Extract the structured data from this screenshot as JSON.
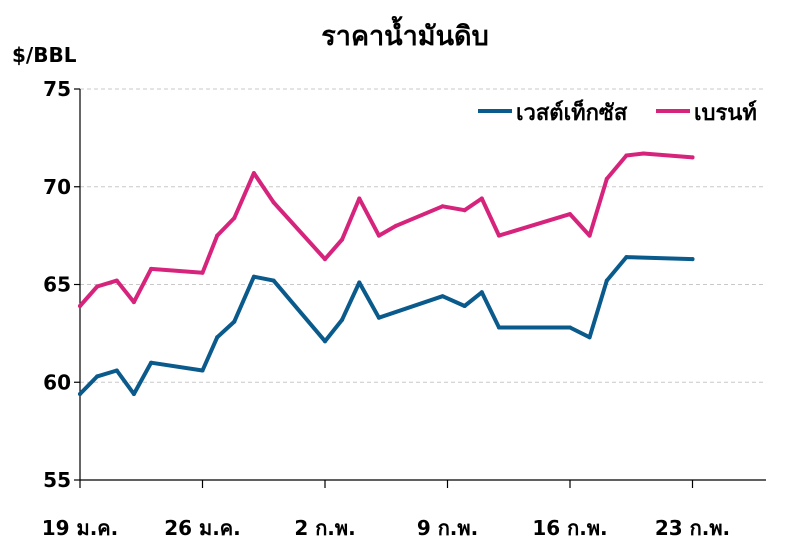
{
  "chart_data": {
    "type": "line",
    "title": "ราคาน้ำมันดิบ",
    "ylabel": "$/BBL",
    "ylim": [
      55,
      75
    ],
    "yticks": [
      75,
      70,
      65,
      60,
      55
    ],
    "grid": true,
    "legend_position": "top-right",
    "xlim": [
      0,
      28.5
    ],
    "xticks": [
      {
        "label": "19 ม.ค.",
        "x": 0
      },
      {
        "label": "26 ม.ค.",
        "x": 5
      },
      {
        "label": "2 ก.พ.",
        "x": 10
      },
      {
        "label": "9 ก.พ.",
        "x": 15
      },
      {
        "label": "16 ก.พ.",
        "x": 20
      },
      {
        "label": "23 ก.พ.",
        "x": 25
      }
    ],
    "series": [
      {
        "name": "เวสต์เท็กซัส",
        "color": "#0a5a8c",
        "points": [
          [
            0,
            59.4
          ],
          [
            0.7,
            60.3
          ],
          [
            1.5,
            60.6
          ],
          [
            2.2,
            59.4
          ],
          [
            2.9,
            61.0
          ],
          [
            5,
            60.6
          ],
          [
            5.6,
            62.3
          ],
          [
            6.3,
            63.1
          ],
          [
            7.1,
            65.4
          ],
          [
            7.9,
            65.2
          ],
          [
            10,
            62.1
          ],
          [
            10.7,
            63.2
          ],
          [
            11.4,
            65.1
          ],
          [
            12.2,
            63.3
          ],
          [
            14.8,
            64.4
          ],
          [
            15.7,
            63.9
          ],
          [
            16.4,
            64.6
          ],
          [
            17.1,
            62.8
          ],
          [
            20,
            62.8
          ],
          [
            20.8,
            62.3
          ],
          [
            21.5,
            65.2
          ],
          [
            22.3,
            66.4
          ],
          [
            25,
            66.3
          ]
        ]
      },
      {
        "name": "เบรนท์",
        "color": "#d6247d",
        "points": [
          [
            0,
            63.9
          ],
          [
            0.7,
            64.9
          ],
          [
            1.5,
            65.2
          ],
          [
            2.2,
            64.1
          ],
          [
            2.9,
            65.8
          ],
          [
            5,
            65.6
          ],
          [
            5.6,
            67.5
          ],
          [
            6.3,
            68.4
          ],
          [
            7.1,
            70.7
          ],
          [
            7.9,
            69.2
          ],
          [
            10,
            66.3
          ],
          [
            10.7,
            67.3
          ],
          [
            11.4,
            69.4
          ],
          [
            12.2,
            67.5
          ],
          [
            12.9,
            68.0
          ],
          [
            14.8,
            69.0
          ],
          [
            15.7,
            68.8
          ],
          [
            16.4,
            69.4
          ],
          [
            17.1,
            67.5
          ],
          [
            20,
            68.6
          ],
          [
            20.8,
            67.5
          ],
          [
            21.5,
            70.4
          ],
          [
            22.3,
            71.6
          ],
          [
            23,
            71.7
          ],
          [
            25,
            71.5
          ]
        ]
      }
    ]
  }
}
